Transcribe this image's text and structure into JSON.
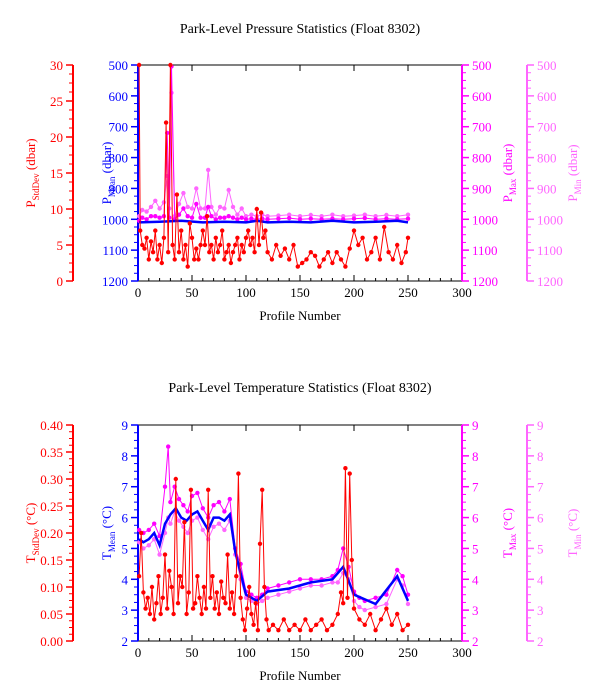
{
  "chart_data": [
    {
      "type": "line",
      "title": "Park-Level Pressure Statistics (Float 8302)",
      "xlabel": "Profile Number",
      "xlim": [
        0,
        300
      ],
      "xticks": [
        0,
        50,
        100,
        150,
        200,
        250,
        300
      ],
      "axes": [
        {
          "id": "stddev",
          "label_main": "P",
          "label_sub": "StdDev",
          "label_unit": " (dbar)",
          "side": "left",
          "color": "#ff0000",
          "ylim": [
            0,
            30
          ],
          "ticks": [
            0,
            5,
            10,
            15,
            20,
            25,
            30
          ],
          "inverted": false
        },
        {
          "id": "mean",
          "label_main": "P",
          "label_sub": "Mean",
          "label_unit": " (dbar)",
          "side": "left",
          "color": "#0000ff",
          "ylim": [
            500,
            1200
          ],
          "ticks": [
            500,
            600,
            700,
            800,
            900,
            1000,
            1100,
            1200
          ],
          "inverted": true
        },
        {
          "id": "max",
          "label_main": "P",
          "label_sub": "Max",
          "label_unit": " (dbar)",
          "side": "right",
          "color": "#ff00ff",
          "ylim": [
            500,
            1200
          ],
          "ticks": [
            500,
            600,
            700,
            800,
            900,
            1000,
            1100,
            1200
          ],
          "inverted": true
        },
        {
          "id": "min",
          "label_main": "P",
          "label_sub": "Min",
          "label_unit": " (dbar)",
          "side": "right",
          "color": "#ff66ff",
          "ylim": [
            500,
            1200
          ],
          "ticks": [
            500,
            600,
            700,
            800,
            900,
            1000,
            1100,
            1200
          ],
          "inverted": true
        }
      ],
      "series": [
        {
          "axis": "min",
          "color": "#ff66ff",
          "marker": true,
          "x": [
            1,
            4,
            8,
            12,
            16,
            20,
            24,
            27,
            29,
            31,
            34,
            38,
            42,
            46,
            50,
            54,
            58,
            62,
            65,
            68,
            72,
            76,
            80,
            84,
            88,
            92,
            96,
            100,
            105,
            110,
            115,
            120,
            130,
            140,
            150,
            160,
            170,
            180,
            190,
            200,
            210,
            220,
            230,
            240,
            250
          ],
          "y": [
            990,
            970,
            975,
            960,
            940,
            965,
            945,
            860,
            965,
            590,
            990,
            950,
            915,
            960,
            965,
            900,
            965,
            965,
            840,
            960,
            985,
            960,
            965,
            905,
            960,
            985,
            965,
            990,
            985,
            990,
            985,
            990,
            988,
            985,
            990,
            986,
            990,
            985,
            990,
            988,
            985,
            990,
            986,
            990,
            985
          ]
        },
        {
          "axis": "max",
          "color": "#ff00ff",
          "marker": true,
          "x": [
            1,
            4,
            8,
            12,
            16,
            20,
            24,
            27,
            29,
            31,
            34,
            38,
            42,
            46,
            50,
            54,
            58,
            62,
            65,
            68,
            72,
            76,
            80,
            84,
            88,
            92,
            96,
            100,
            105,
            110,
            115,
            120,
            130,
            140,
            150,
            160,
            170,
            180,
            190,
            200,
            210,
            220,
            230,
            240,
            250
          ],
          "y": [
            1005,
            995,
            1000,
            990,
            990,
            995,
            990,
            720,
            995,
            505,
            1000,
            985,
            965,
            990,
            995,
            950,
            995,
            995,
            960,
            990,
            1000,
            995,
            995,
            990,
            995,
            1000,
            995,
            1000,
            998,
            1000,
            998,
            1000,
            998,
            996,
            1000,
            998,
            1000,
            998,
            1000,
            998,
            996,
            1000,
            998,
            1000,
            998
          ]
        },
        {
          "axis": "mean",
          "color": "#0000ff",
          "marker": false,
          "x": [
            1,
            20,
            40,
            60,
            80,
            100,
            110,
            120,
            140,
            160,
            180,
            200,
            220,
            240,
            250
          ],
          "y": [
            1010,
            1008,
            1005,
            1010,
            1008,
            1010,
            1005,
            1010,
            1008,
            1010,
            1005,
            1010,
            1008,
            1005,
            1010
          ]
        },
        {
          "axis": "stddev",
          "color": "#ff0000",
          "marker": true,
          "x": [
            1,
            2,
            4,
            6,
            8,
            10,
            12,
            14,
            16,
            18,
            20,
            22,
            24,
            26,
            28,
            30,
            32,
            34,
            36,
            38,
            40,
            42,
            44,
            46,
            48,
            50,
            52,
            54,
            56,
            58,
            60,
            62,
            64,
            66,
            68,
            70,
            72,
            74,
            76,
            78,
            80,
            82,
            84,
            86,
            88,
            90,
            92,
            94,
            96,
            98,
            100,
            102,
            104,
            106,
            108,
            110,
            112,
            114,
            116,
            118,
            120,
            124,
            128,
            132,
            136,
            140,
            144,
            148,
            152,
            156,
            160,
            164,
            168,
            172,
            176,
            180,
            184,
            188,
            192,
            196,
            200,
            204,
            208,
            212,
            216,
            220,
            224,
            228,
            232,
            236,
            240,
            244,
            248,
            250
          ],
          "y": [
            30,
            7,
            5,
            4.5,
            6,
            3,
            5.5,
            4,
            7,
            3,
            5,
            2.5,
            6,
            22,
            4,
            30,
            5,
            3,
            12,
            4,
            7,
            3,
            5,
            2,
            8,
            6,
            3,
            4.5,
            3,
            5,
            7,
            5,
            9,
            4,
            5,
            3,
            6,
            4,
            5,
            7,
            3,
            4,
            5,
            2.5,
            4,
            5,
            6,
            3,
            5,
            4,
            6,
            7,
            5,
            6,
            4,
            10,
            5,
            9.5,
            6,
            7,
            4,
            3,
            5,
            3.5,
            4.5,
            3,
            5,
            2,
            2.5,
            3,
            4,
            3.5,
            2,
            3,
            4,
            2.5,
            4,
            3,
            2,
            4.5,
            7,
            5,
            6,
            3,
            4,
            6,
            3,
            7.5,
            4,
            3,
            5,
            2.5,
            4,
            6
          ]
        }
      ]
    },
    {
      "type": "line",
      "title": "Park-Level Temperature Statistics (Float 8302)",
      "xlabel": "Profile Number",
      "xlim": [
        0,
        300
      ],
      "xticks": [
        0,
        50,
        100,
        150,
        200,
        250,
        300
      ],
      "axes": [
        {
          "id": "stddev",
          "label_main": "T",
          "label_sub": "StdDev",
          "label_unit": " (°C)",
          "side": "left",
          "color": "#ff0000",
          "ylim": [
            0,
            0.4
          ],
          "ticks": [
            "0.00",
            "0.05",
            "0.10",
            "0.15",
            "0.20",
            "0.25",
            "0.30",
            "0.35",
            "0.40"
          ],
          "inverted": false
        },
        {
          "id": "mean",
          "label_main": "T",
          "label_sub": "Mean",
          "label_unit": " (°C)",
          "side": "left",
          "color": "#0000ff",
          "ylim": [
            2,
            9
          ],
          "ticks": [
            2,
            3,
            4,
            5,
            6,
            7,
            8,
            9
          ],
          "inverted": false
        },
        {
          "id": "max",
          "label_main": "T",
          "label_sub": "Max",
          "label_unit": " (°C)",
          "side": "right",
          "color": "#ff00ff",
          "ylim": [
            2,
            9
          ],
          "ticks": [
            2,
            3,
            4,
            5,
            6,
            7,
            8,
            9
          ],
          "inverted": false
        },
        {
          "id": "min",
          "label_main": "T",
          "label_sub": "Min",
          "label_unit": " (°C)",
          "side": "right",
          "color": "#ff66ff",
          "ylim": [
            2,
            9
          ],
          "ticks": [
            2,
            3,
            4,
            5,
            6,
            7,
            8,
            9
          ],
          "inverted": false
        }
      ],
      "series": [
        {
          "axis": "min",
          "color": "#ff66ff",
          "marker": true,
          "x": [
            1,
            5,
            10,
            15,
            20,
            25,
            28,
            30,
            34,
            38,
            42,
            46,
            50,
            55,
            60,
            65,
            70,
            75,
            80,
            85,
            90,
            95,
            100,
            105,
            110,
            115,
            120,
            130,
            140,
            150,
            160,
            170,
            180,
            185,
            190,
            195,
            200,
            205,
            210,
            220,
            230,
            240,
            245,
            250
          ],
          "y": [
            5.2,
            5.0,
            5.1,
            5.3,
            4.8,
            5.5,
            6.0,
            5.8,
            6.2,
            5.9,
            5.7,
            5.5,
            5.9,
            6.0,
            5.6,
            5.3,
            5.7,
            5.8,
            5.6,
            5.9,
            4.8,
            4.0,
            3.4,
            3.3,
            3.2,
            3.3,
            3.4,
            3.5,
            3.6,
            3.7,
            3.8,
            3.8,
            3.9,
            3.9,
            4.2,
            4.0,
            3.3,
            3.1,
            3.0,
            3.1,
            3.2,
            4.0,
            3.8,
            3.2
          ]
        },
        {
          "axis": "max",
          "color": "#ff00ff",
          "marker": true,
          "x": [
            1,
            5,
            10,
            15,
            20,
            25,
            28,
            30,
            34,
            38,
            42,
            46,
            50,
            55,
            60,
            65,
            70,
            75,
            80,
            85,
            90,
            95,
            100,
            105,
            110,
            115,
            120,
            130,
            140,
            150,
            160,
            170,
            180,
            185,
            190,
            195,
            200,
            205,
            210,
            220,
            230,
            240,
            245,
            250
          ],
          "y": [
            5.6,
            5.5,
            5.6,
            5.8,
            5.4,
            7.0,
            8.3,
            6.5,
            7.0,
            6.6,
            6.4,
            6.2,
            6.7,
            6.8,
            6.3,
            6.0,
            6.4,
            6.5,
            6.2,
            6.6,
            5.0,
            4.5,
            3.6,
            3.5,
            3.4,
            3.5,
            3.7,
            3.8,
            3.9,
            4.0,
            4.0,
            4.0,
            4.1,
            4.3,
            5.0,
            4.4,
            3.6,
            3.4,
            3.3,
            3.4,
            3.5,
            4.3,
            4.1,
            3.5
          ]
        },
        {
          "axis": "mean",
          "color": "#0000ff",
          "marker": false,
          "x": [
            1,
            5,
            10,
            15,
            20,
            25,
            30,
            35,
            40,
            45,
            50,
            55,
            60,
            65,
            70,
            75,
            80,
            85,
            90,
            95,
            100,
            110,
            120,
            140,
            160,
            180,
            190,
            200,
            220,
            240,
            250
          ],
          "y": [
            5.3,
            5.2,
            5.3,
            5.5,
            5.1,
            5.8,
            6.1,
            6.3,
            6.0,
            5.9,
            6.1,
            6.2,
            5.9,
            5.6,
            6.0,
            6.0,
            5.9,
            6.1,
            4.9,
            4.2,
            3.5,
            3.3,
            3.6,
            3.7,
            3.9,
            4.0,
            4.4,
            3.5,
            3.2,
            4.1,
            3.3
          ]
        },
        {
          "axis": "stddev",
          "color": "#ff0000",
          "marker": true,
          "x": [
            1,
            3,
            5,
            7,
            9,
            11,
            13,
            15,
            17,
            19,
            21,
            23,
            25,
            27,
            29,
            31,
            33,
            35,
            37,
            39,
            41,
            43,
            45,
            47,
            49,
            51,
            53,
            55,
            57,
            59,
            61,
            63,
            65,
            67,
            69,
            71,
            73,
            75,
            77,
            79,
            81,
            83,
            85,
            87,
            89,
            91,
            93,
            95,
            97,
            99,
            101,
            103,
            105,
            107,
            109,
            111,
            113,
            115,
            117,
            119,
            121,
            125,
            130,
            135,
            140,
            145,
            150,
            155,
            160,
            165,
            170,
            175,
            180,
            185,
            188,
            190,
            192,
            194,
            196,
            198,
            200,
            205,
            210,
            215,
            220,
            225,
            230,
            235,
            240,
            245,
            250
          ],
          "y": [
            0.12,
            0.2,
            0.09,
            0.06,
            0.08,
            0.05,
            0.1,
            0.04,
            0.07,
            0.12,
            0.05,
            0.08,
            0.16,
            0.06,
            0.13,
            0.1,
            0.05,
            0.3,
            0.07,
            0.12,
            0.1,
            0.22,
            0.05,
            0.09,
            0.28,
            0.06,
            0.07,
            0.12,
            0.08,
            0.05,
            0.1,
            0.06,
            0.28,
            0.08,
            0.12,
            0.06,
            0.09,
            0.05,
            0.11,
            0.08,
            0.07,
            0.16,
            0.06,
            0.09,
            0.05,
            0.12,
            0.31,
            0.08,
            0.04,
            0.02,
            0.06,
            0.1,
            0.05,
            0.03,
            0.07,
            0.02,
            0.18,
            0.28,
            0.1,
            0.04,
            0.02,
            0.03,
            0.02,
            0.04,
            0.02,
            0.03,
            0.02,
            0.04,
            0.02,
            0.03,
            0.04,
            0.02,
            0.03,
            0.05,
            0.09,
            0.07,
            0.32,
            0.08,
            0.31,
            0.15,
            0.06,
            0.04,
            0.03,
            0.05,
            0.02,
            0.04,
            0.06,
            0.03,
            0.05,
            0.02,
            0.03
          ]
        }
      ]
    }
  ]
}
